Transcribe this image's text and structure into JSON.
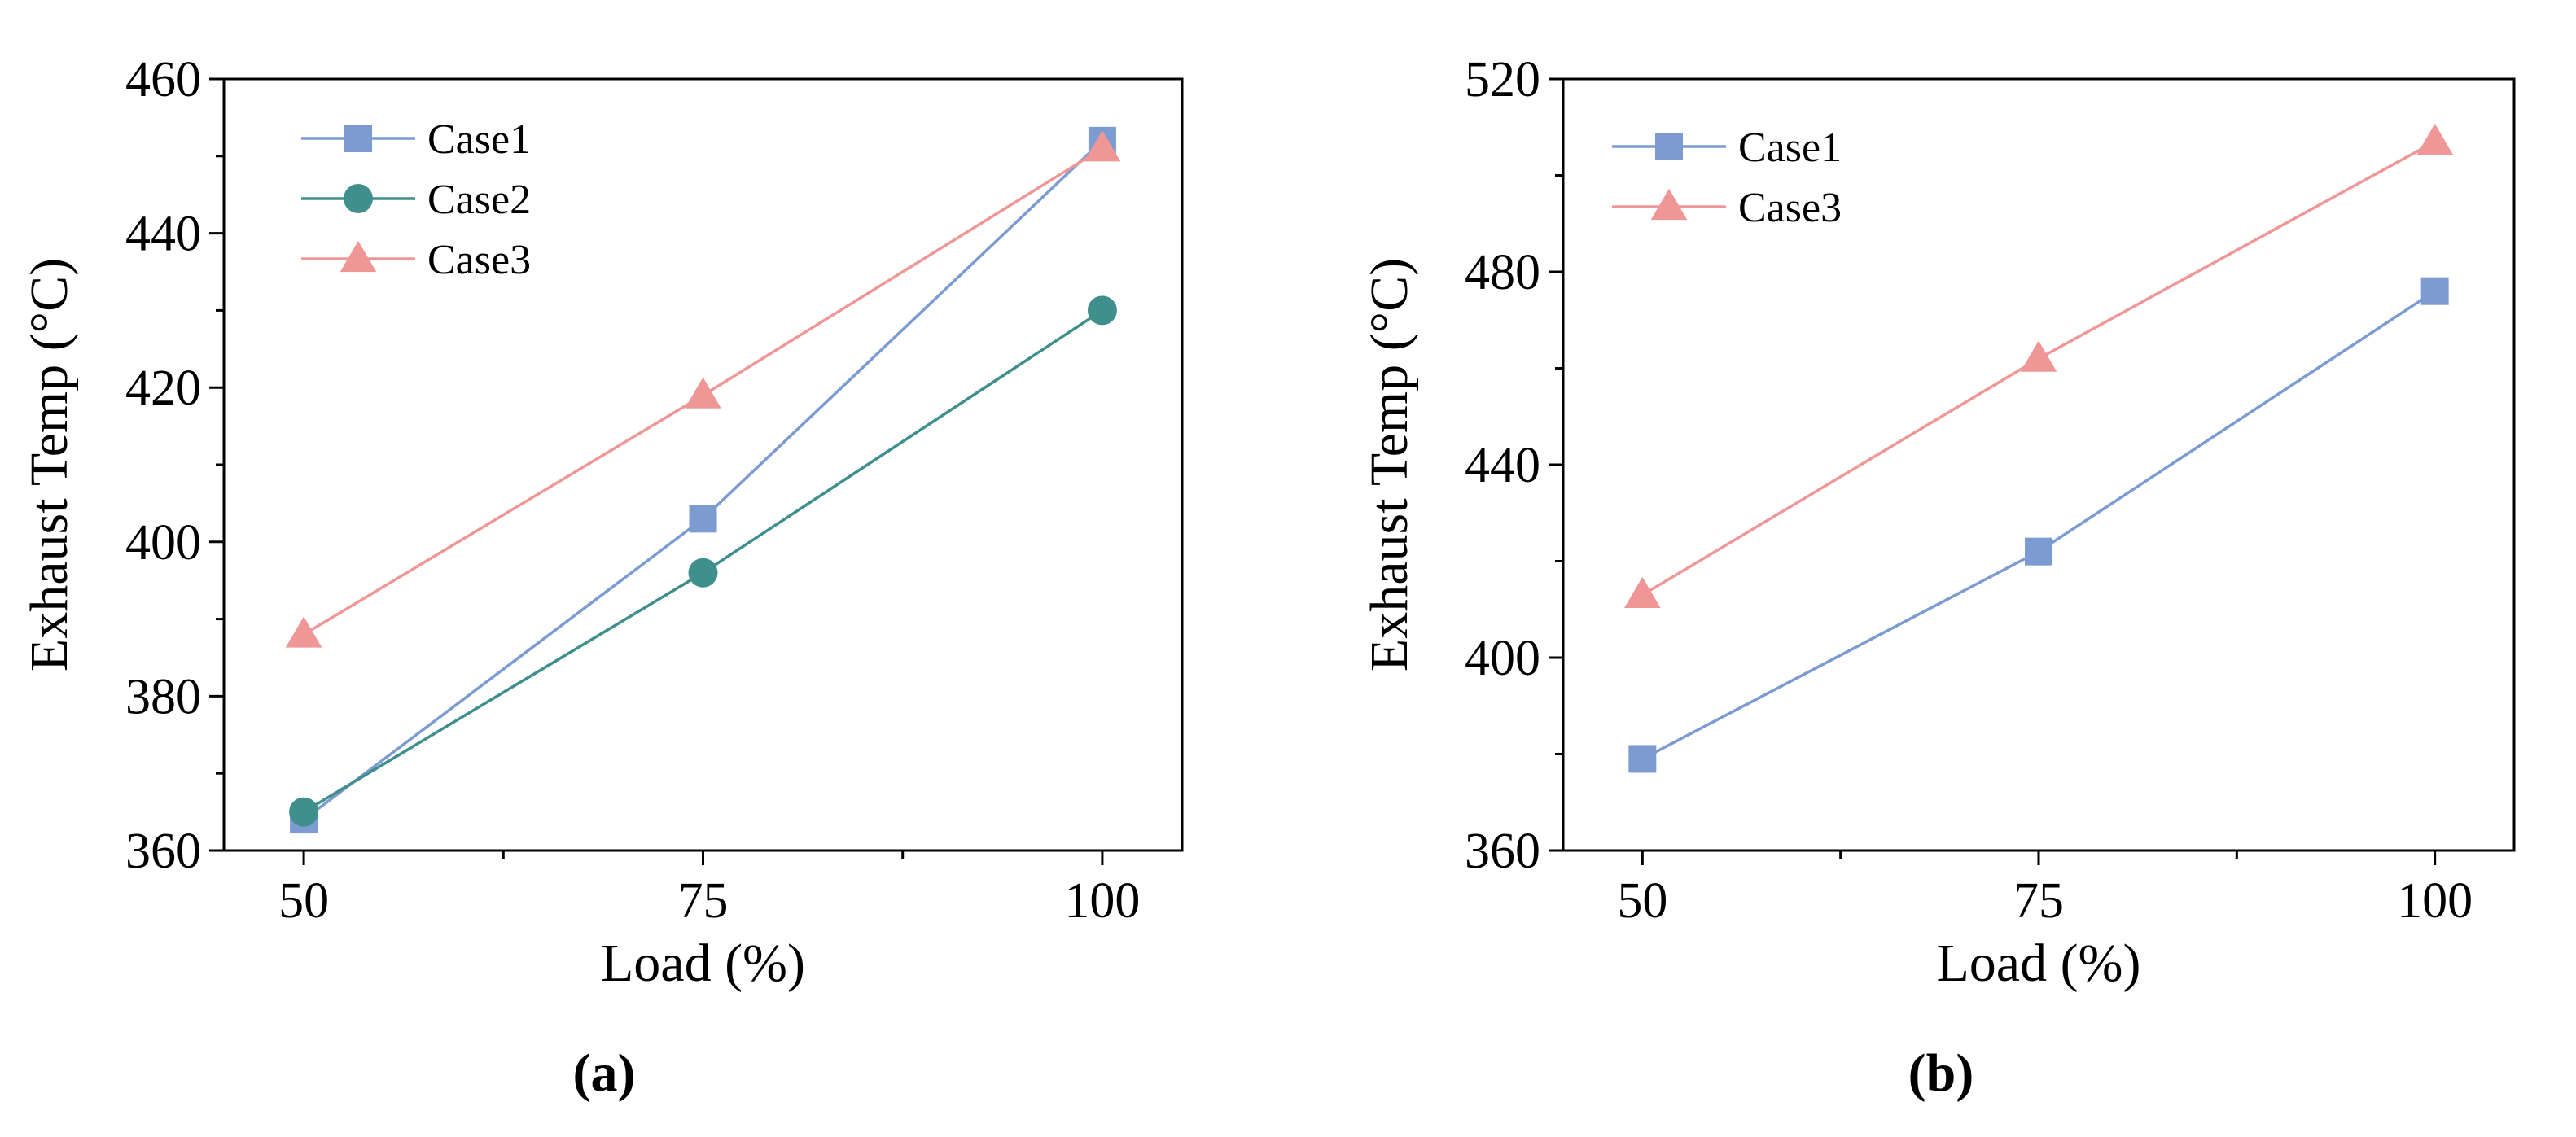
{
  "chart_data": [
    {
      "type": "line",
      "panel_label": "(a)",
      "xlabel": "Load (%)",
      "ylabel": "Exhaust Temp (°C)",
      "x": [
        50,
        75,
        100
      ],
      "xticks": [
        "50",
        "75",
        "100"
      ],
      "xlim": [
        45,
        105
      ],
      "ylim": [
        360,
        460
      ],
      "yticks": [
        "360",
        "380",
        "400",
        "420",
        "440",
        "460"
      ],
      "ytick_values": [
        360,
        380,
        400,
        420,
        440,
        460
      ],
      "legend_position": "top-left",
      "grid": false,
      "series": [
        {
          "name": "Case1",
          "values": [
            364,
            403,
            452
          ],
          "color": "#7b9bd1",
          "marker": "square"
        },
        {
          "name": "Case2",
          "values": [
            365,
            396,
            430
          ],
          "color": "#3f8f8c",
          "marker": "circle"
        },
        {
          "name": "Case3",
          "values": [
            388,
            419,
            451
          ],
          "color": "#ef9797",
          "marker": "triangle"
        }
      ]
    },
    {
      "type": "line",
      "panel_label": "(b)",
      "xlabel": "Load (%)",
      "ylabel": "Exhaust Temp (°C)",
      "x": [
        50,
        75,
        100
      ],
      "xticks": [
        "50",
        "75",
        "100"
      ],
      "xlim": [
        45,
        105
      ],
      "ylim": [
        360,
        520
      ],
      "yticks": [
        "360",
        "400",
        "440",
        "480",
        "520"
      ],
      "ytick_values": [
        360,
        400,
        440,
        480,
        520
      ],
      "legend_position": "top-left",
      "grid": false,
      "series": [
        {
          "name": "Case1",
          "values": [
            379,
            422,
            476
          ],
          "color": "#7b9bd1",
          "marker": "square"
        },
        {
          "name": "Case3",
          "values": [
            413,
            462,
            507
          ],
          "color": "#ef9797",
          "marker": "triangle"
        }
      ]
    }
  ]
}
